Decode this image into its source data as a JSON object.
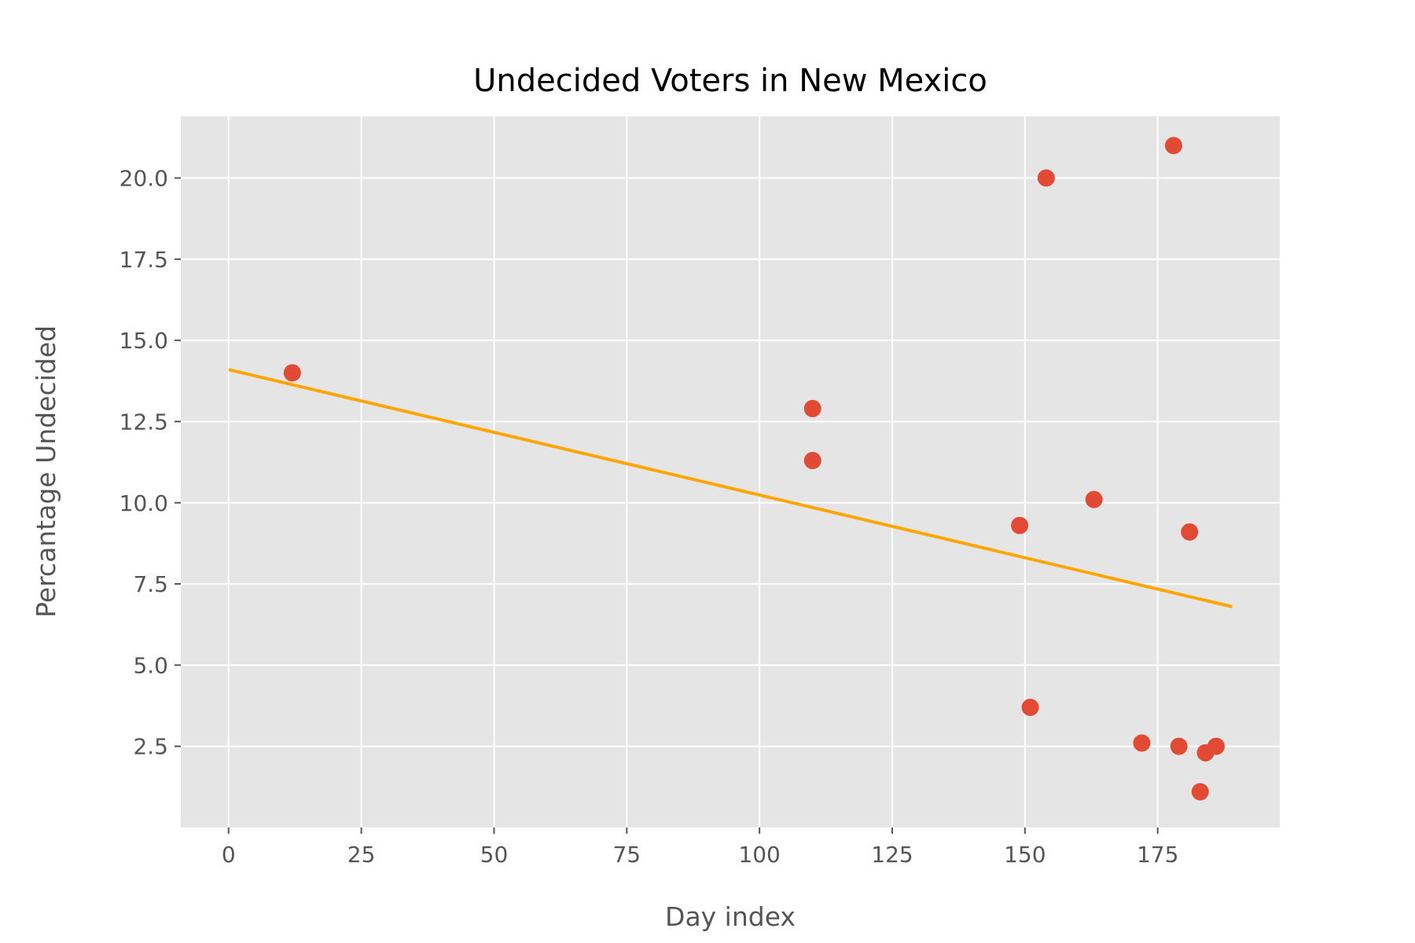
{
  "chart_data": {
    "type": "scatter",
    "title": "Undecided Voters in New Mexico",
    "xlabel": "Day index",
    "ylabel": "Percantage Undecided",
    "xlim": [
      -9,
      198
    ],
    "ylim": [
      0.0,
      21.9
    ],
    "x_ticks": [
      0,
      25,
      50,
      75,
      100,
      125,
      150,
      175
    ],
    "x_tick_labels": [
      "0",
      "25",
      "50",
      "75",
      "100",
      "125",
      "150",
      "175"
    ],
    "y_ticks": [
      2.5,
      5.0,
      7.5,
      10.0,
      12.5,
      15.0,
      17.5,
      20.0
    ],
    "y_tick_labels": [
      "2.5",
      "5.0",
      "7.5",
      "10.0",
      "12.5",
      "15.0",
      "17.5",
      "20.0"
    ],
    "grid": true,
    "series": [
      {
        "kind": "points",
        "color": "#E24A33",
        "x": [
          12,
          110,
          110,
          149,
          151,
          154,
          163,
          172,
          178,
          179,
          181,
          183,
          184,
          186
        ],
        "y": [
          14.0,
          12.9,
          11.3,
          9.3,
          3.7,
          20.0,
          10.1,
          2.6,
          21.0,
          2.5,
          9.1,
          1.1,
          2.3,
          2.5
        ]
      },
      {
        "kind": "trend-line",
        "color": "#FFA500",
        "x": [
          0,
          189
        ],
        "y": [
          14.1,
          6.8
        ]
      }
    ],
    "colors": {
      "plot_background": "#E5E5E5",
      "grid": "#FFFFFF",
      "text": "#555555",
      "title": "#000000"
    }
  }
}
